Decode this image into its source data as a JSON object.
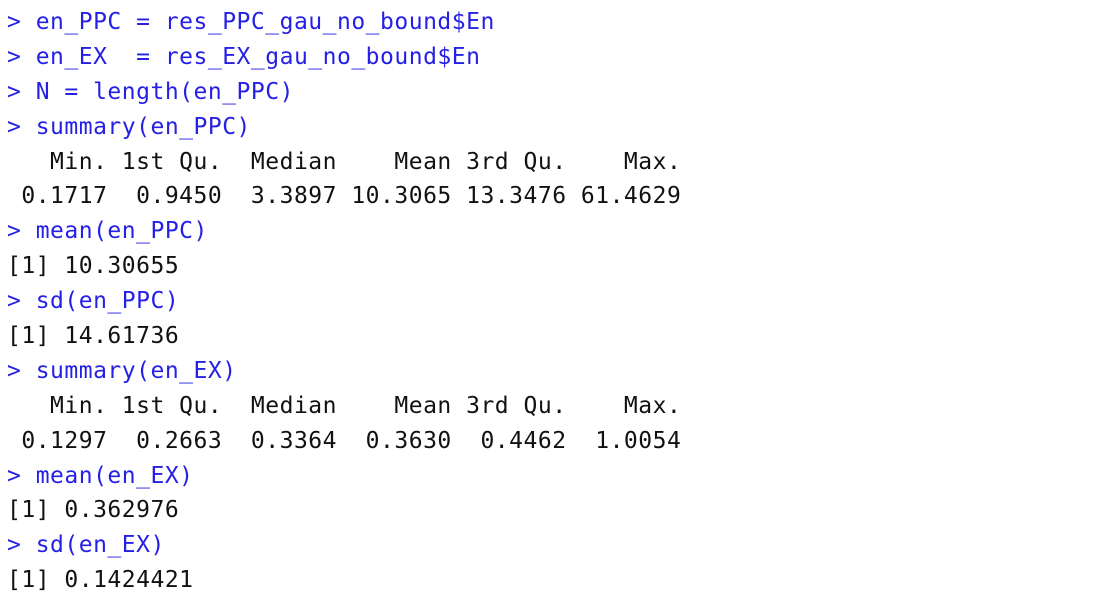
{
  "colors": {
    "input_text": "#2520e6",
    "output_text": "#111111",
    "background": "#ffffff"
  },
  "console": {
    "lines": [
      {
        "type": "input",
        "text": "> en_PPC = res_PPC_gau_no_bound$En"
      },
      {
        "type": "input",
        "text": "> en_EX  = res_EX_gau_no_bound$En"
      },
      {
        "type": "input",
        "text": "> N = length(en_PPC)"
      },
      {
        "type": "input",
        "text": "> summary(en_PPC)"
      },
      {
        "type": "output",
        "text": "   Min. 1st Qu.  Median    Mean 3rd Qu.    Max. "
      },
      {
        "type": "output",
        "text": " 0.1717  0.9450  3.3897 10.3065 13.3476 61.4629 "
      },
      {
        "type": "input",
        "text": "> mean(en_PPC)"
      },
      {
        "type": "output",
        "text": "[1] 10.30655"
      },
      {
        "type": "input",
        "text": "> sd(en_PPC)"
      },
      {
        "type": "output",
        "text": "[1] 14.61736"
      },
      {
        "type": "input",
        "text": "> summary(en_EX)"
      },
      {
        "type": "output",
        "text": "   Min. 1st Qu.  Median    Mean 3rd Qu.    Max. "
      },
      {
        "type": "output",
        "text": " 0.1297  0.2663  0.3364  0.3630  0.4462  1.0054 "
      },
      {
        "type": "input",
        "text": "> mean(en_EX)"
      },
      {
        "type": "output",
        "text": "[1] 0.362976"
      },
      {
        "type": "input",
        "text": "> sd(en_EX)"
      },
      {
        "type": "output",
        "text": "[1] 0.1424421"
      }
    ]
  }
}
